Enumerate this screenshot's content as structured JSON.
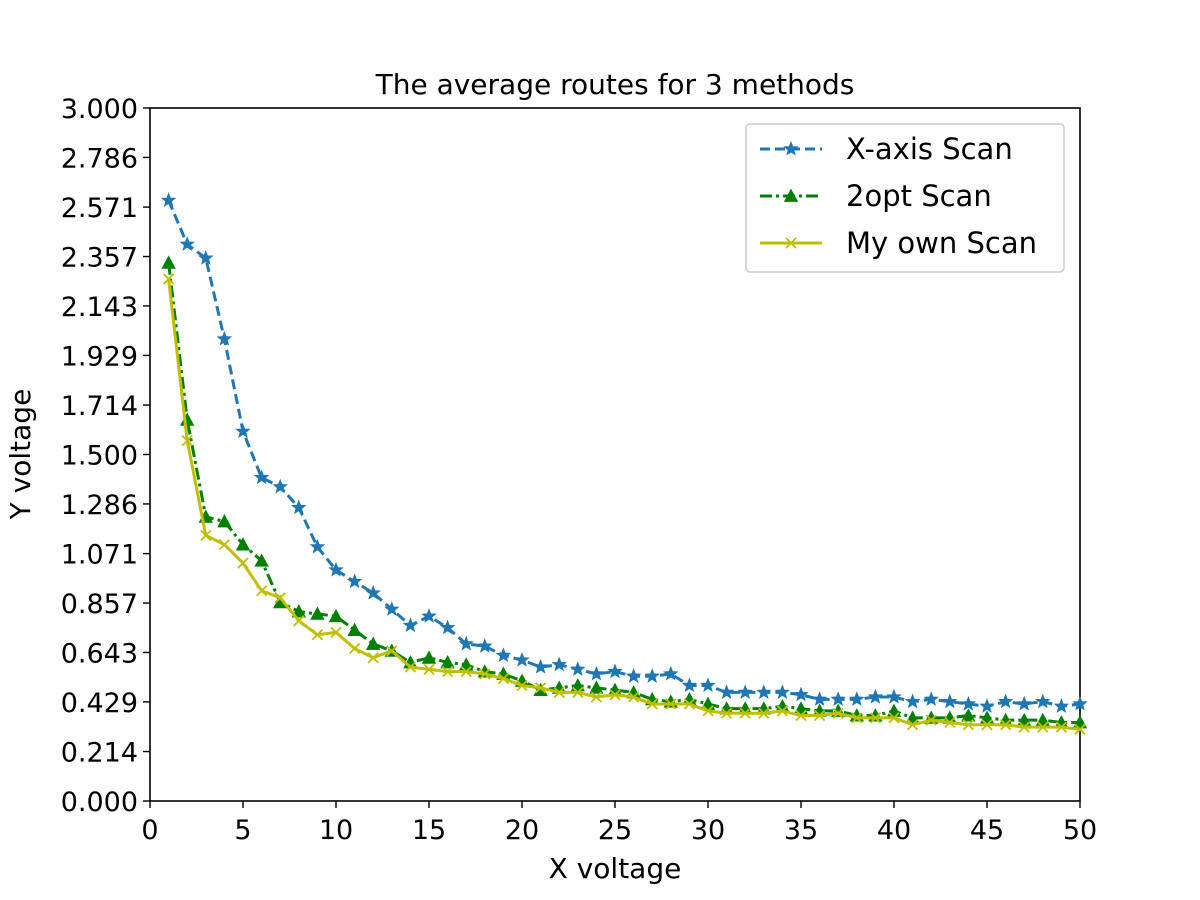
{
  "chart_data": {
    "type": "line",
    "title": "The average routes for 3 methods",
    "xlabel": "X voltage",
    "ylabel": "Y voltage",
    "xlim": [
      0,
      50
    ],
    "ylim": [
      0,
      3.0
    ],
    "xticks": [
      0,
      5,
      10,
      15,
      20,
      25,
      30,
      35,
      40,
      45,
      50
    ],
    "xtick_labels": [
      "0",
      "5",
      "10",
      "15",
      "20",
      "25",
      "30",
      "35",
      "40",
      "45",
      "50"
    ],
    "yticks": [
      0,
      0.214,
      0.429,
      0.643,
      0.857,
      1.071,
      1.286,
      1.5,
      1.714,
      1.929,
      2.143,
      2.357,
      2.571,
      2.786,
      3.0
    ],
    "ytick_labels": [
      "0.000",
      "0.214",
      "0.429",
      "0.643",
      "0.857",
      "1.071",
      "1.286",
      "1.500",
      "1.714",
      "1.929",
      "2.143",
      "2.357",
      "2.571",
      "2.786",
      "3.000"
    ],
    "grid": false,
    "legend_position": "top-right",
    "x": [
      1,
      2,
      3,
      4,
      5,
      6,
      7,
      8,
      9,
      10,
      11,
      12,
      13,
      14,
      15,
      16,
      17,
      18,
      19,
      20,
      21,
      22,
      23,
      24,
      25,
      26,
      27,
      28,
      29,
      30,
      31,
      32,
      33,
      34,
      35,
      36,
      37,
      38,
      39,
      40,
      41,
      42,
      43,
      44,
      45,
      46,
      47,
      48,
      49,
      50
    ],
    "series": [
      {
        "name": "X-axis Scan",
        "color": "#1f77b4",
        "line_style": "dashed",
        "marker": "star",
        "values": [
          2.6,
          2.41,
          2.35,
          2.0,
          1.6,
          1.4,
          1.36,
          1.27,
          1.1,
          1.0,
          0.95,
          0.9,
          0.83,
          0.76,
          0.8,
          0.75,
          0.68,
          0.67,
          0.63,
          0.61,
          0.58,
          0.59,
          0.57,
          0.55,
          0.56,
          0.54,
          0.54,
          0.55,
          0.5,
          0.5,
          0.47,
          0.47,
          0.47,
          0.47,
          0.46,
          0.44,
          0.44,
          0.44,
          0.45,
          0.45,
          0.43,
          0.44,
          0.43,
          0.42,
          0.41,
          0.43,
          0.42,
          0.43,
          0.41,
          0.42
        ]
      },
      {
        "name": "2opt Scan",
        "color": "#008000",
        "line_style": "dashdot",
        "marker": "triangle",
        "values": [
          2.33,
          1.65,
          1.23,
          1.21,
          1.11,
          1.04,
          0.86,
          0.82,
          0.81,
          0.8,
          0.74,
          0.68,
          0.65,
          0.6,
          0.62,
          0.6,
          0.59,
          0.56,
          0.55,
          0.52,
          0.48,
          0.49,
          0.5,
          0.49,
          0.48,
          0.47,
          0.44,
          0.43,
          0.44,
          0.42,
          0.4,
          0.4,
          0.4,
          0.41,
          0.4,
          0.39,
          0.39,
          0.37,
          0.37,
          0.39,
          0.36,
          0.36,
          0.36,
          0.37,
          0.36,
          0.35,
          0.35,
          0.35,
          0.34,
          0.34
        ]
      },
      {
        "name": "My own Scan",
        "color": "#bfbf00",
        "line_style": "solid",
        "marker": "x",
        "values": [
          2.26,
          1.56,
          1.15,
          1.11,
          1.03,
          0.91,
          0.88,
          0.78,
          0.72,
          0.73,
          0.66,
          0.62,
          0.65,
          0.58,
          0.57,
          0.56,
          0.56,
          0.55,
          0.53,
          0.5,
          0.49,
          0.47,
          0.47,
          0.45,
          0.46,
          0.45,
          0.42,
          0.42,
          0.42,
          0.39,
          0.38,
          0.38,
          0.38,
          0.39,
          0.37,
          0.37,
          0.38,
          0.36,
          0.36,
          0.36,
          0.33,
          0.35,
          0.34,
          0.33,
          0.33,
          0.33,
          0.32,
          0.32,
          0.32,
          0.31
        ]
      }
    ]
  }
}
